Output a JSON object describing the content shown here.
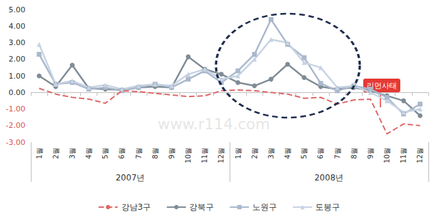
{
  "chart_data": {
    "type": "line",
    "categories": [
      "1월",
      "2월",
      "3월",
      "4월",
      "5월",
      "6월",
      "7월",
      "8월",
      "9월",
      "10월",
      "11월",
      "12월",
      "1월",
      "2월",
      "3월",
      "4월",
      "5월",
      "6월",
      "7월",
      "8월",
      "9월",
      "10월",
      "11월",
      "12월"
    ],
    "x_groups": [
      "2007년",
      "2008년"
    ],
    "series": [
      {
        "name": "강남3구",
        "color": "#e06666",
        "marker": "none",
        "line_style": "dashed",
        "values": [
          0.25,
          -0.1,
          -0.3,
          -0.4,
          -0.65,
          0.1,
          0.05,
          -0.05,
          -0.15,
          -0.25,
          -0.2,
          0.1,
          0.15,
          0.1,
          0.0,
          -0.1,
          -0.35,
          -0.3,
          -0.7,
          -0.45,
          -0.4,
          -2.5,
          -1.9,
          -2.0
        ]
      },
      {
        "name": "강북구",
        "color": "#7f8c96",
        "marker": "circle",
        "line_style": "solid",
        "values": [
          1.0,
          0.35,
          1.65,
          0.25,
          0.2,
          0.15,
          0.3,
          0.35,
          0.3,
          2.15,
          1.4,
          1.1,
          0.6,
          0.4,
          0.8,
          1.7,
          0.9,
          0.35,
          0.2,
          0.3,
          0.1,
          -0.2,
          -0.5,
          -1.4
        ]
      },
      {
        "name": "노원구",
        "color": "#a9b8cc",
        "marker": "rect",
        "line_style": "solid",
        "values": [
          2.3,
          0.5,
          0.6,
          0.2,
          0.3,
          0.1,
          0.3,
          0.5,
          0.3,
          0.8,
          1.3,
          0.6,
          1.3,
          2.3,
          4.4,
          2.9,
          2.1,
          0.55,
          0.1,
          0.4,
          0.2,
          -0.3,
          -1.3,
          -0.7
        ]
      },
      {
        "name": "도봉구",
        "color": "#c7d3e3",
        "marker": "triangle",
        "line_style": "solid",
        "values": [
          2.9,
          0.5,
          0.7,
          0.3,
          0.45,
          0.2,
          0.4,
          0.5,
          0.4,
          1.1,
          1.4,
          0.8,
          1.0,
          2.0,
          3.2,
          3.0,
          1.8,
          1.5,
          0.3,
          0.4,
          0.0,
          -0.5,
          -1.2,
          -1.0
        ]
      }
    ],
    "ylim": [
      -3,
      5
    ],
    "yticks": [
      {
        "value": -3,
        "label": "-3.00"
      },
      {
        "value": -2,
        "label": "-2.00"
      },
      {
        "value": -1,
        "label": "-1.00"
      },
      {
        "value": 0,
        "label": "0.00"
      },
      {
        "value": 1,
        "label": "1.00"
      },
      {
        "value": 2,
        "label": "2.00"
      },
      {
        "value": 3,
        "label": "3.00"
      },
      {
        "value": 4,
        "label": "4.00"
      },
      {
        "value": 5,
        "label": "5.00"
      }
    ],
    "grid": false,
    "legend": "bottom",
    "annotations": [
      {
        "text": "리먼사태"
      }
    ],
    "watermark": "www.r114.com"
  }
}
